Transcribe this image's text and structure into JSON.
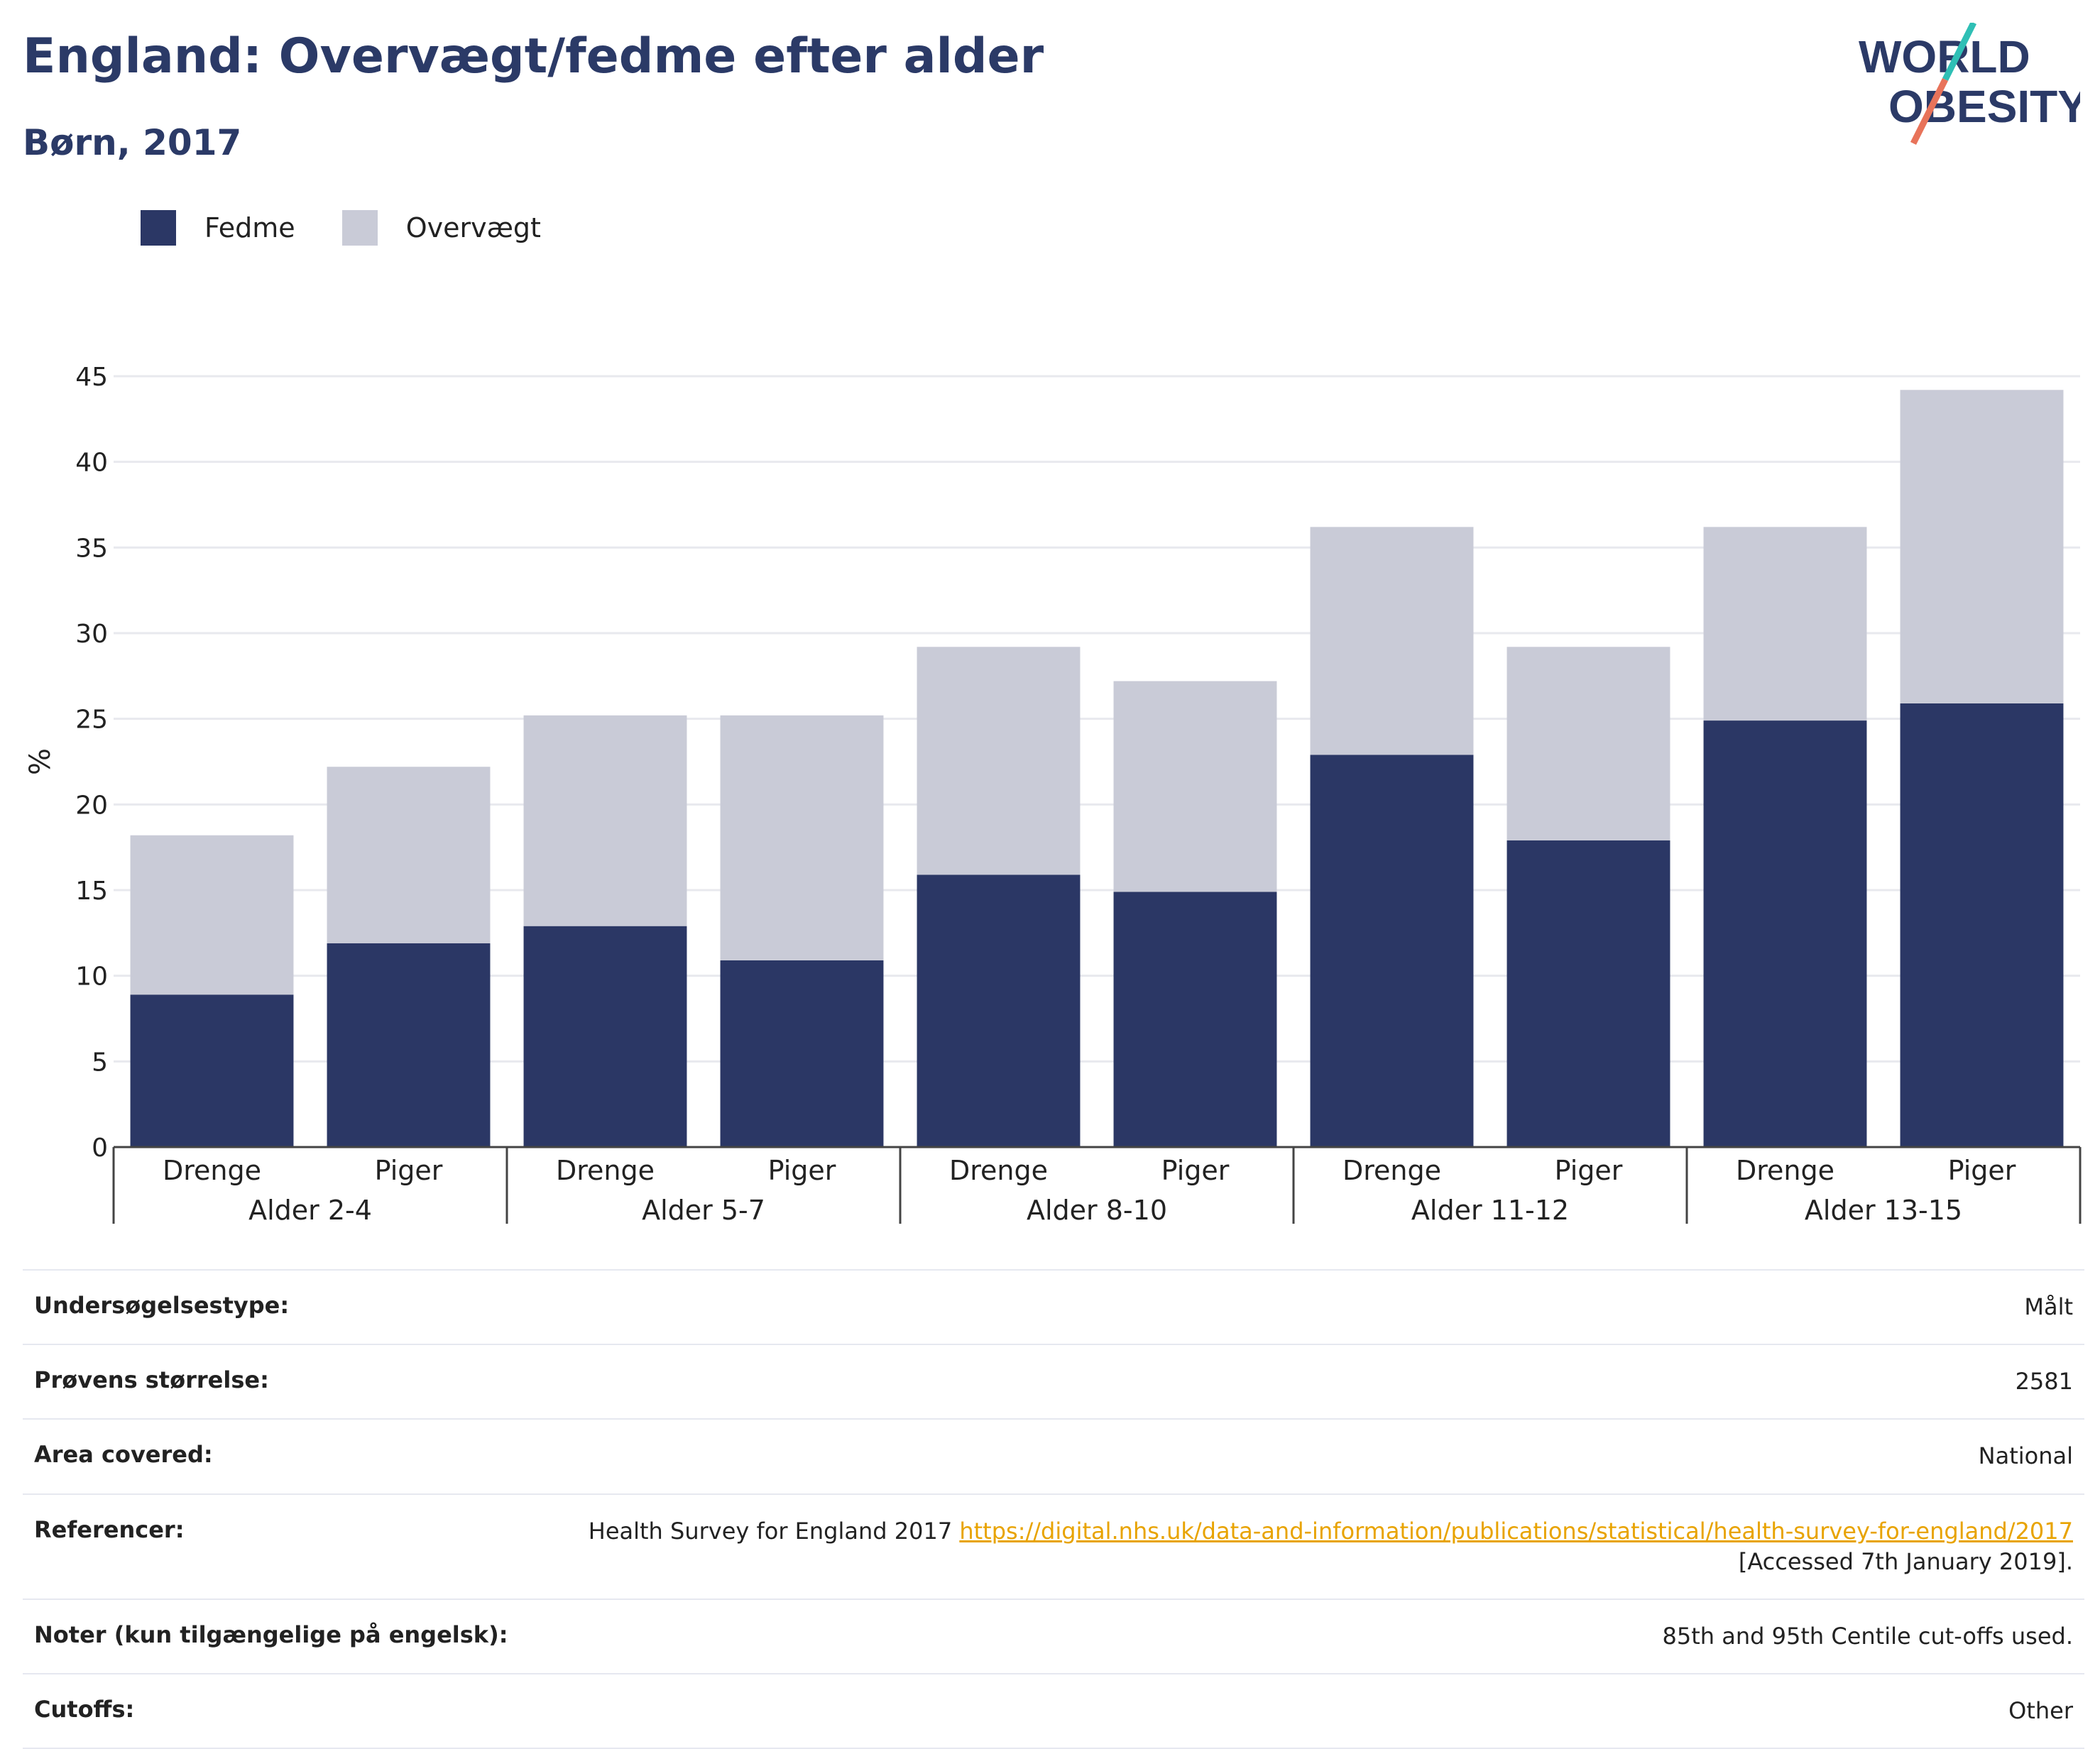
{
  "header": {
    "title": "England: Overvægt/fedme efter alder",
    "subtitle": "Børn, 2017",
    "logo_line1": "WORLD",
    "logo_line2": "OBESITY"
  },
  "colors": {
    "fedme": "#2b3765",
    "overvaegt": "#c9cbd7",
    "title": "#2b3a67",
    "link": "#e8a300",
    "logo_teal": "#2fbfb5",
    "logo_coral": "#e8735a"
  },
  "chart_data": {
    "type": "bar",
    "stacked": true,
    "ylabel": "%",
    "ylim": [
      0,
      45
    ],
    "yticks": [
      0,
      5,
      10,
      15,
      20,
      25,
      30,
      35,
      40,
      45
    ],
    "grid": true,
    "legend_position": "top-left",
    "groups": [
      "Alder 2-4",
      "Alder 5-7",
      "Alder 8-10",
      "Alder 11-12",
      "Alder 13-15"
    ],
    "subcategories": [
      "Drenge",
      "Piger"
    ],
    "categories": [
      "Drenge",
      "Piger",
      "Drenge",
      "Piger",
      "Drenge",
      "Piger",
      "Drenge",
      "Piger",
      "Drenge",
      "Piger"
    ],
    "series": [
      {
        "name": "Fedme",
        "values": [
          8.9,
          11.9,
          12.9,
          10.9,
          15.9,
          14.9,
          22.9,
          17.9,
          24.9,
          25.9
        ]
      },
      {
        "name": "Overvægt",
        "values": [
          9.3,
          10.3,
          12.3,
          14.3,
          13.3,
          12.3,
          13.3,
          11.3,
          11.3,
          18.3
        ]
      }
    ]
  },
  "meta": {
    "rows": [
      {
        "label": "Undersøgelsestype:",
        "value": "Målt"
      },
      {
        "label": "Prøvens størrelse:",
        "value": "2581"
      },
      {
        "label": "Area covered:",
        "value": "National"
      },
      {
        "label": "Referencer:",
        "value_prefix": "Health Survey for England 2017 ",
        "link": "https://digital.nhs.uk/data-and-information/publications/statistical/health-survey-for-england/2017",
        "value_suffix": "[Accessed 7th January 2019]."
      },
      {
        "label": "Noter (kun tilgængelige på engelsk):",
        "value": "85th and 95th Centile cut-offs used."
      },
      {
        "label": "Cutoffs:",
        "value": "Other"
      }
    ]
  }
}
